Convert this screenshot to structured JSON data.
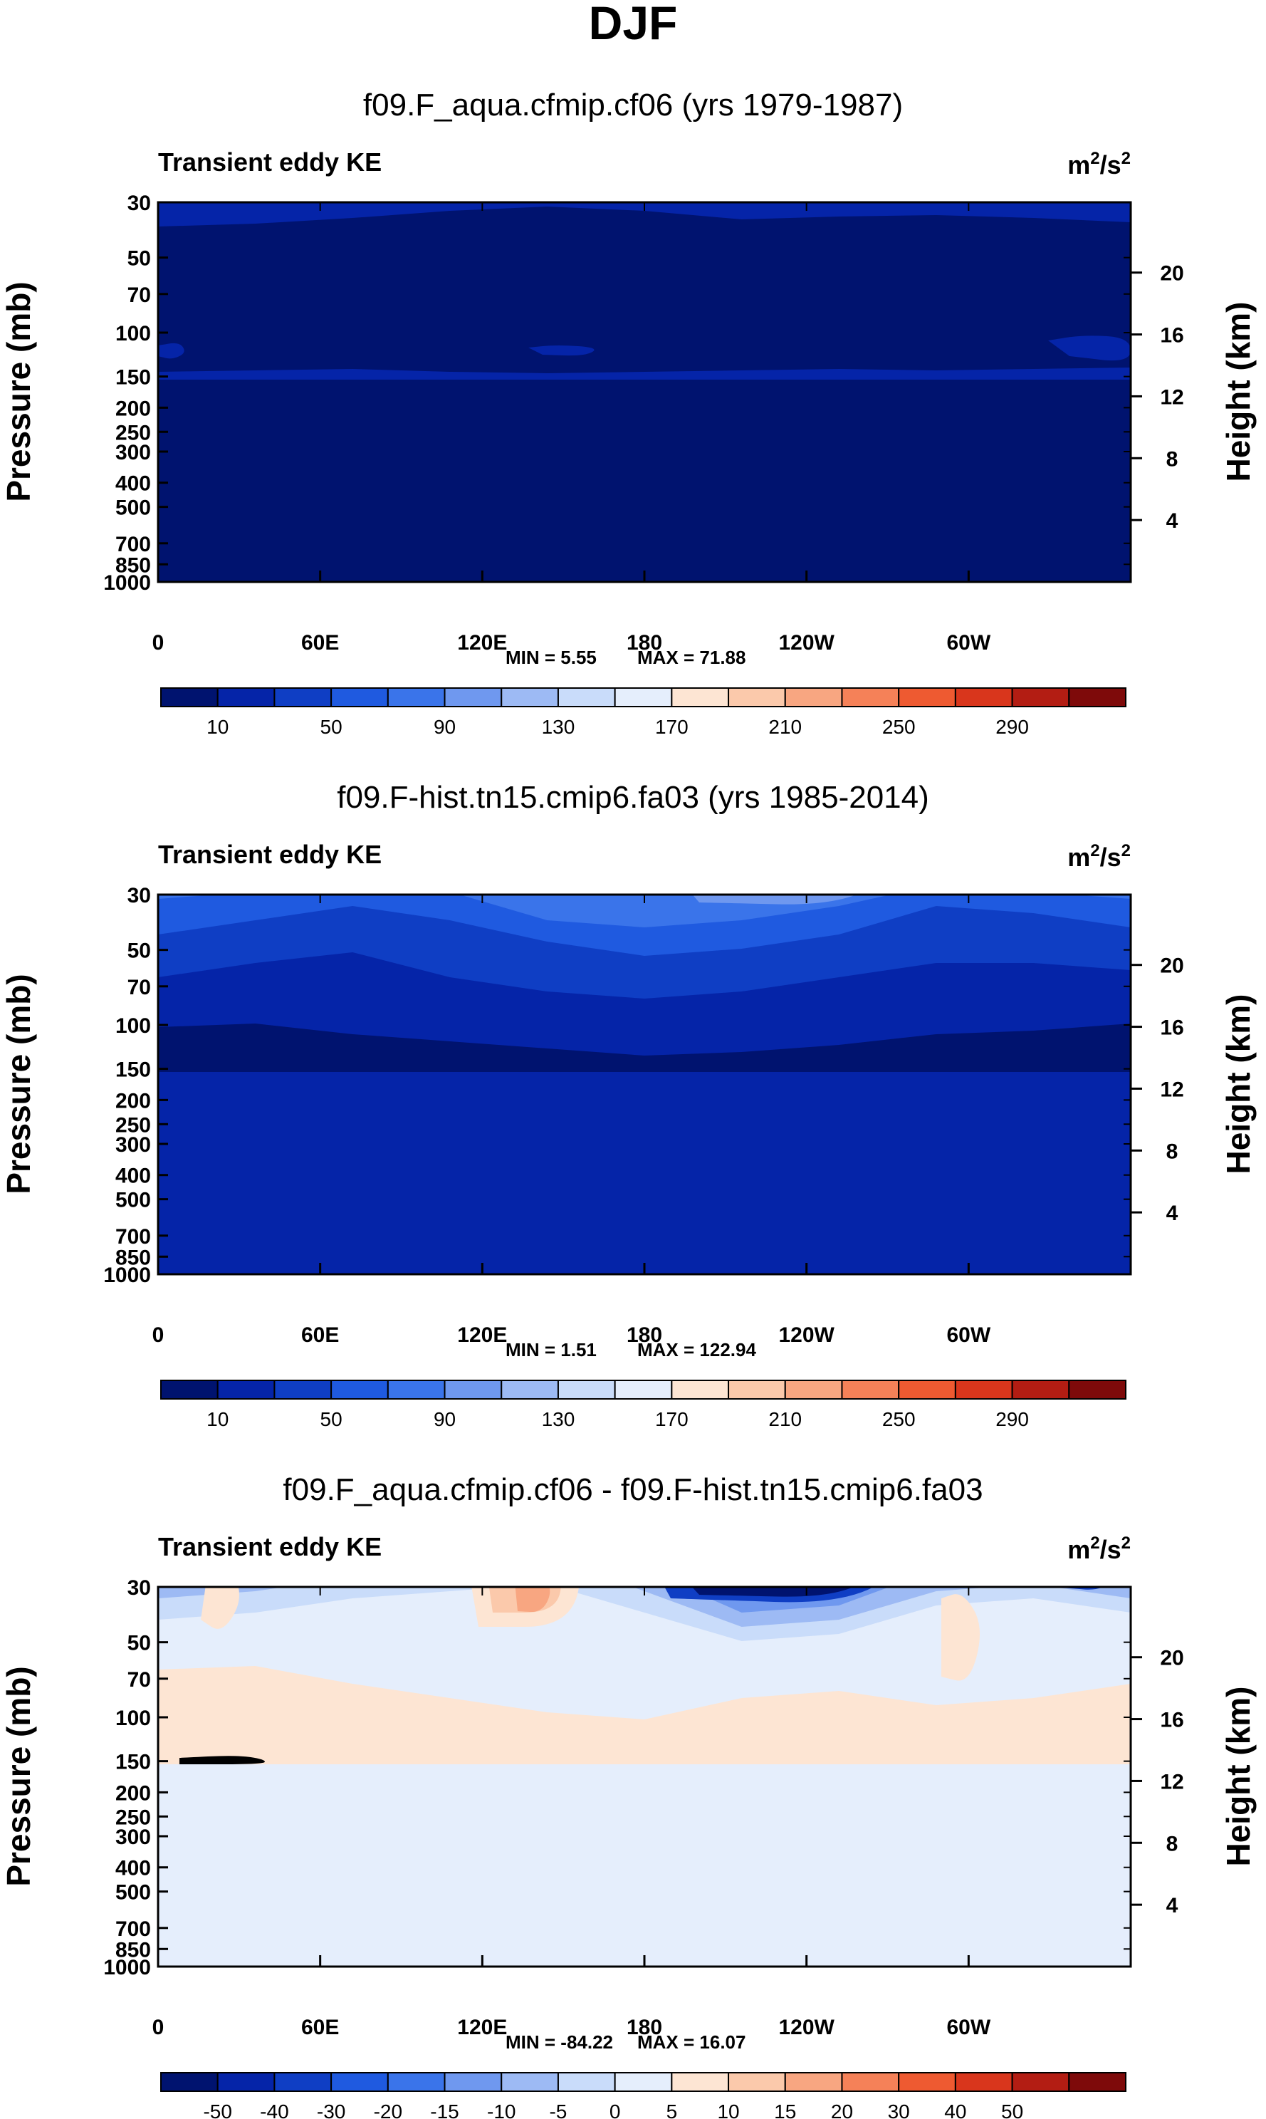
{
  "page_title": "DJF",
  "panel_left_label": "Transient eddy KE",
  "units_base": "m",
  "units_exp1": "2",
  "units_sep": "/s",
  "units_exp2": "2",
  "ylabel_left": "Pressure (mb)",
  "ylabel_right": "Height (km)",
  "pressure_ticks": [
    "30",
    "50",
    "70",
    "100",
    "150",
    "200",
    "250",
    "300",
    "400",
    "500",
    "700",
    "850",
    "1000"
  ],
  "height_ticks": [
    "20",
    "16",
    "12",
    "8",
    "4"
  ],
  "lon_ticks": [
    "0",
    "60E",
    "120E",
    "180",
    "120W",
    "60W"
  ],
  "colors": {
    "abs_levels": [
      "#00136f",
      "#0524a8",
      "#0f3ec4",
      "#1f5ae0",
      "#3a74ea",
      "#6f98ef",
      "#9dbaf4",
      "#c9dcfa",
      "#e5eefc",
      "#fde5d3",
      "#fbc9ab",
      "#f8a681",
      "#f58158",
      "#ee5a31",
      "#d9361c",
      "#b31d13",
      "#7e0a0a"
    ],
    "diff_levels": [
      "#00136f",
      "#0524a8",
      "#0f3ec4",
      "#1f5ae0",
      "#3a74ea",
      "#6f98ef",
      "#9dbaf4",
      "#c9dcfa",
      "#e5eefc",
      "#fde5d3",
      "#fbc9ab",
      "#f8a681",
      "#f58158",
      "#ee5a31",
      "#d9361c",
      "#b31d13",
      "#7e0a0a"
    ]
  },
  "chart_data": [
    {
      "type": "heatmap",
      "title": "f09.F_aqua.cfmip.cf06 (yrs 1979-1987)",
      "left_label": "Transient eddy KE",
      "units": "m2/s2",
      "min_label": "MIN =   5.55",
      "max_label": "MAX =  71.88",
      "min": 5.55,
      "max": 71.88,
      "colorbar_levels": [
        10,
        30,
        50,
        70,
        90,
        110,
        130,
        150,
        170,
        190,
        210,
        230,
        250,
        270,
        290
      ],
      "colorbar_labels": [
        "10",
        "50",
        "90",
        "130",
        "170",
        "210",
        "250",
        "290"
      ],
      "xlabel": "",
      "x_ticks": [
        "0",
        "60E",
        "120E",
        "180",
        "120W",
        "60W"
      ],
      "pressure_ticks": [
        30,
        50,
        70,
        100,
        150,
        200,
        250,
        300,
        400,
        500,
        700,
        850,
        1000
      ],
      "height_ticks": [
        20,
        16,
        12,
        8,
        4
      ]
    },
    {
      "type": "heatmap",
      "title": "f09.F-hist.tn15.cmip6.fa03 (yrs 1985-2014)",
      "left_label": "Transient eddy KE",
      "units": "m2/s2",
      "min_label": "MIN =   1.51",
      "max_label": "MAX = 122.94",
      "min": 1.51,
      "max": 122.94,
      "colorbar_levels": [
        10,
        30,
        50,
        70,
        90,
        110,
        130,
        150,
        170,
        190,
        210,
        230,
        250,
        270,
        290
      ],
      "colorbar_labels": [
        "10",
        "50",
        "90",
        "130",
        "170",
        "210",
        "250",
        "290"
      ],
      "x_ticks": [
        "0",
        "60E",
        "120E",
        "180",
        "120W",
        "60W"
      ],
      "pressure_ticks": [
        30,
        50,
        70,
        100,
        150,
        200,
        250,
        300,
        400,
        500,
        700,
        850,
        1000
      ],
      "height_ticks": [
        20,
        16,
        12,
        8,
        4
      ]
    },
    {
      "type": "heatmap",
      "title": "f09.F_aqua.cfmip.cf06 - f09.F-hist.tn15.cmip6.fa03",
      "left_label": "Transient eddy KE",
      "units": "m2/s2",
      "min_label": "MIN = -84.22",
      "max_label": "MAX =  16.07",
      "min": -84.22,
      "max": 16.07,
      "colorbar_levels": [
        -50,
        -40,
        -30,
        -20,
        -15,
        -10,
        -5,
        0,
        5,
        10,
        15,
        20,
        30,
        40,
        50
      ],
      "colorbar_labels": [
        "-50",
        "-40",
        "-30",
        "-20",
        "-15",
        "-10",
        "-5",
        "0",
        "5",
        "10",
        "15",
        "20",
        "30",
        "40",
        "50"
      ],
      "x_ticks": [
        "0",
        "60E",
        "120E",
        "180",
        "120W",
        "60W"
      ],
      "pressure_ticks": [
        30,
        50,
        70,
        100,
        150,
        200,
        250,
        300,
        400,
        500,
        700,
        850,
        1000
      ],
      "height_ticks": [
        20,
        16,
        12,
        8,
        4
      ]
    }
  ]
}
